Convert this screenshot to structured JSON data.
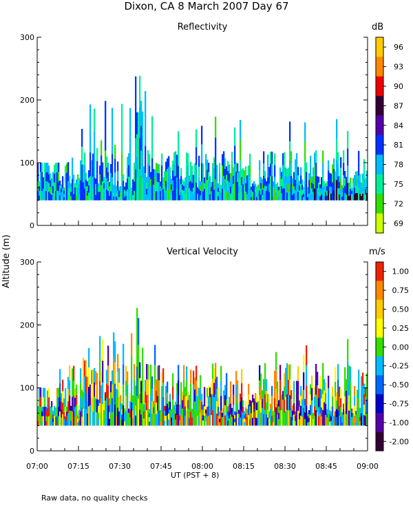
{
  "main_title": "Dixon, CA  8 March 2007  Day  67",
  "footnote": "Raw data, no quality checks",
  "chart_data": [
    {
      "type": "heatmap",
      "title": "Reflectivity",
      "colorbar_unit": "dB",
      "ylabel": "Altitude  (m)",
      "ylim": [
        0,
        300
      ],
      "yticks": [
        "0",
        "100",
        "200",
        "300"
      ],
      "xlabel": "UT   (PST + 8)",
      "xlim_minutes": [
        0,
        120
      ],
      "xticks": [
        "07:00",
        "07:15",
        "07:30",
        "07:45",
        "08:00",
        "08:15",
        "08:30",
        "08:45",
        "09:00"
      ],
      "colorbar_ticks": [
        "96",
        "93",
        "90",
        "87",
        "84",
        "81",
        "78",
        "75",
        "72",
        "69"
      ],
      "colorbar_colors": [
        "#ffcc00",
        "#ff8800",
        "#ee0000",
        "#330033",
        "#5500aa",
        "#0033ff",
        "#00bbff",
        "#00ee99",
        "#33dd00",
        "#ccff00"
      ],
      "data_range_alt": [
        40,
        120
      ],
      "peak_alt": 240,
      "peak_time_minutes": 37
    },
    {
      "type": "heatmap",
      "title": "Vertical Velocity",
      "colorbar_unit": "m/s",
      "ylim": [
        0,
        300
      ],
      "yticks": [
        "0",
        "100",
        "200",
        "300"
      ],
      "xlim_minutes": [
        0,
        120
      ],
      "xticks": [
        "07:00",
        "07:15",
        "07:30",
        "07:45",
        "08:00",
        "08:15",
        "08:30",
        "08:45",
        "09:00"
      ],
      "colorbar_ticks": [
        "1.00",
        "0.75",
        "0.50",
        "0.25",
        "0.00",
        "-0.25",
        "-0.50",
        "-0.75",
        "-1.00",
        "-2.00"
      ],
      "colorbar_colors": [
        "#ee2200",
        "#ff8800",
        "#ffcc00",
        "#ffff00",
        "#33dd00",
        "#00bbff",
        "#0066ff",
        "#0000cc",
        "#5500aa",
        "#330033"
      ],
      "data_range_alt": [
        40,
        140
      ],
      "peak_alt": 240,
      "peak_time_minutes": 36
    }
  ]
}
